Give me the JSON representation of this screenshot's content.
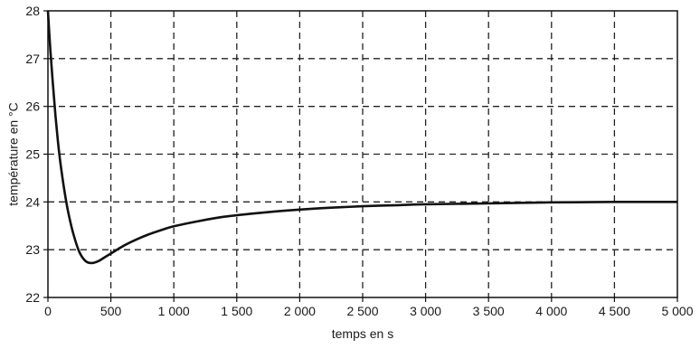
{
  "chart_data": {
    "type": "line",
    "title": "",
    "xlabel": "temps en s",
    "ylabel": "température en °C",
    "xlim": [
      0,
      5000
    ],
    "ylim": [
      22,
      28
    ],
    "grid": true,
    "grid_style": "dashed",
    "x_ticks": [
      0,
      500,
      1000,
      1500,
      2000,
      2500,
      3000,
      3500,
      4000,
      4500,
      5000
    ],
    "x_tick_labels": [
      "0",
      "500",
      "1 000",
      "1 500",
      "2 000",
      "2 500",
      "3 000",
      "3 500",
      "4 000",
      "4 500",
      "5 000"
    ],
    "y_ticks": [
      22,
      23,
      24,
      25,
      26,
      27,
      28
    ],
    "y_tick_labels": [
      "22",
      "23",
      "24",
      "25",
      "26",
      "27",
      "28"
    ],
    "series": [
      {
        "color": "#111111",
        "x": [
          0,
          20,
          40,
          60,
          80,
          100,
          130,
          160,
          200,
          250,
          300,
          350,
          400,
          450,
          500,
          600,
          700,
          800,
          900,
          1000,
          1200,
          1400,
          1600,
          1800,
          2000,
          2250,
          2500,
          2750,
          3000,
          3500,
          4000,
          4500,
          5000
        ],
        "y": [
          28,
          27.15,
          26.45,
          25.8,
          25.25,
          24.8,
          24.25,
          23.8,
          23.35,
          22.95,
          22.76,
          22.72,
          22.76,
          22.84,
          22.92,
          23.08,
          23.21,
          23.32,
          23.41,
          23.49,
          23.6,
          23.69,
          23.75,
          23.8,
          23.84,
          23.88,
          23.91,
          23.93,
          23.95,
          23.97,
          23.99,
          24.0,
          24.0
        ]
      }
    ]
  }
}
